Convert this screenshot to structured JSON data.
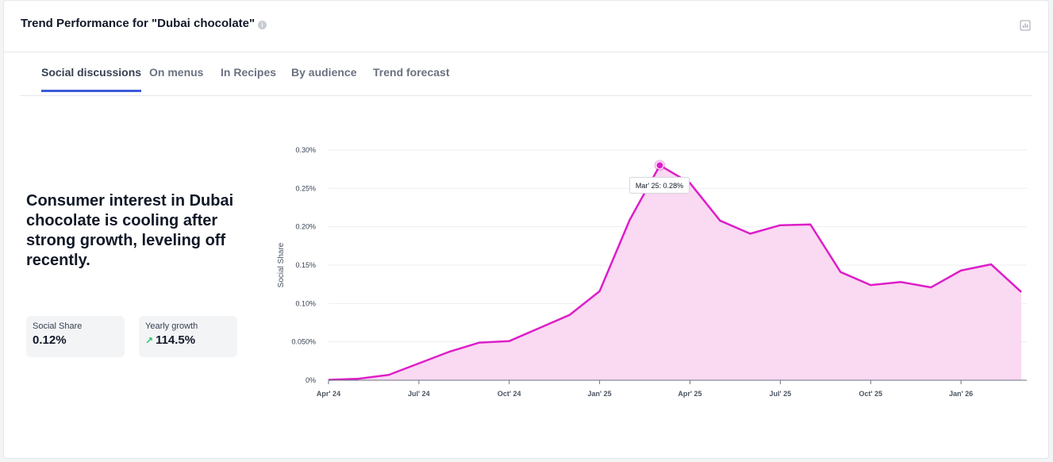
{
  "header": {
    "title": "Trend Performance for \"Dubai chocolate\"",
    "info_glyph": "i"
  },
  "tabs": [
    {
      "label": "Social discussions",
      "active": true
    },
    {
      "label": "On menus",
      "active": false
    },
    {
      "label": "In Recipes",
      "active": false
    },
    {
      "label": "By audience",
      "active": false
    },
    {
      "label": "Trend forecast",
      "active": false
    }
  ],
  "summary": {
    "headline": "Consumer interest in Dubai chocolate is cooling after strong growth, leveling off recently.",
    "stats": [
      {
        "label": "Social Share",
        "value": "0.12%"
      },
      {
        "label": "Yearly growth",
        "value": "114.5%",
        "icon": "trending-up-icon"
      }
    ]
  },
  "colors": {
    "line": "#dd1ec8",
    "fill": "#fad9f2",
    "tab_active": "#3b5bdb",
    "growth": "#22c55e"
  },
  "tooltip": {
    "text": "Mar' 25: 0.28%"
  },
  "chart_data": {
    "type": "area",
    "ylabel": "Social Share",
    "ylim": [
      0,
      0.3
    ],
    "yticks": [
      {
        "value": 0,
        "label": "0%"
      },
      {
        "value": 0.05,
        "label": "0.050%"
      },
      {
        "value": 0.1,
        "label": "0.10%"
      },
      {
        "value": 0.15,
        "label": "0.15%"
      },
      {
        "value": 0.2,
        "label": "0.20%"
      },
      {
        "value": 0.25,
        "label": "0.25%"
      },
      {
        "value": 0.3,
        "label": "0.30%"
      }
    ],
    "xticks": [
      {
        "index": 0,
        "label": "Apr' 24"
      },
      {
        "index": 3,
        "label": "Jul' 24"
      },
      {
        "index": 6,
        "label": "Oct' 24"
      },
      {
        "index": 9,
        "label": "Jan' 25"
      },
      {
        "index": 12,
        "label": "Apr' 25"
      },
      {
        "index": 15,
        "label": "Jul' 25"
      },
      {
        "index": 18,
        "label": "Oct' 25"
      },
      {
        "index": 21,
        "label": "Jan' 26"
      }
    ],
    "x": [
      "Apr' 24",
      "May' 24",
      "Jun' 24",
      "Jul' 24",
      "Aug' 24",
      "Sep' 24",
      "Oct' 24",
      "Nov' 24",
      "Dec' 24",
      "Jan' 25",
      "Feb' 25",
      "Mar' 25",
      "Apr' 25",
      "May' 25",
      "Jun' 25",
      "Jul' 25",
      "Aug' 25",
      "Sep' 25",
      "Oct' 25",
      "Nov' 25",
      "Dec' 25",
      "Jan' 26",
      "Feb' 26",
      "Mar' 26"
    ],
    "series": [
      {
        "values": [
          0.0005,
          0.002,
          0.007,
          0.022,
          0.037,
          0.049,
          0.051,
          0.068,
          0.085,
          0.116,
          0.209,
          0.28,
          0.257,
          0.208,
          0.191,
          0.202,
          0.203,
          0.141,
          0.124,
          0.128,
          0.121,
          0.143,
          0.151,
          0.115
        ]
      }
    ],
    "highlight_index": 11,
    "grid": true
  }
}
